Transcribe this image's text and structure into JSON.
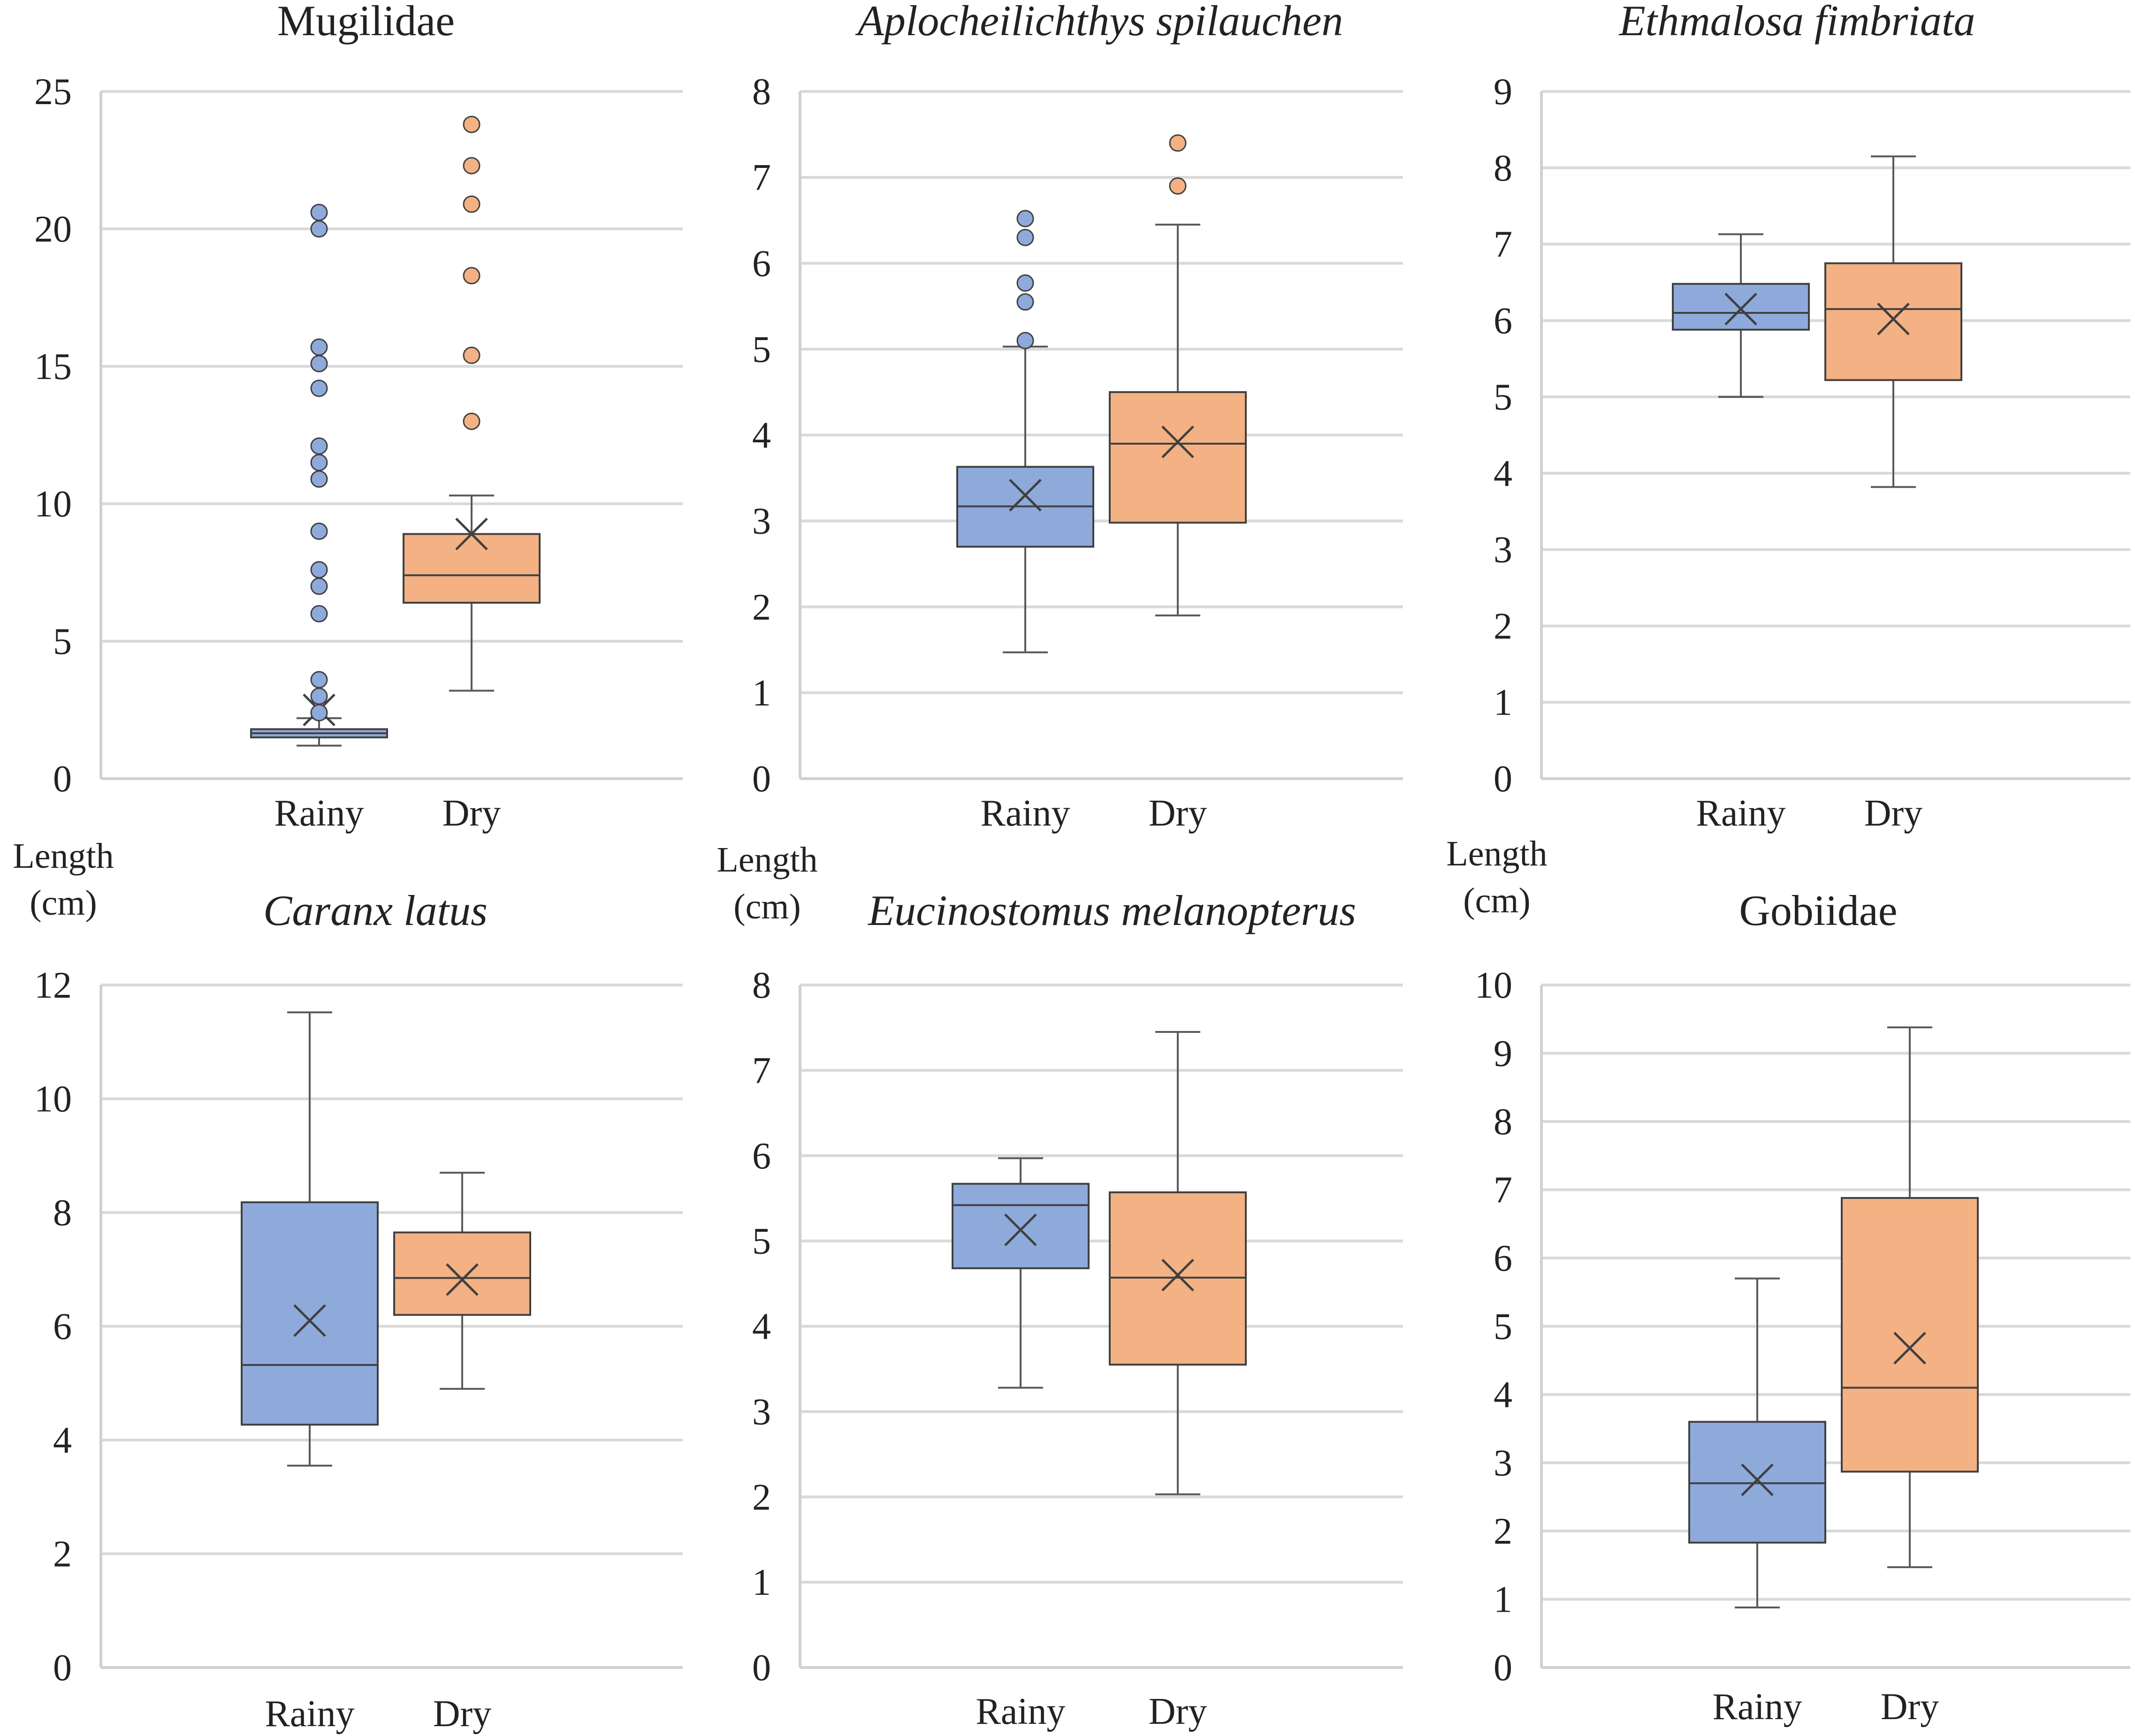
{
  "colors": {
    "rainy": "#8eaadb",
    "dry": "#f4b183",
    "grid": "#d9d9d9"
  },
  "y_axis_label_line1": "Length",
  "y_axis_label_line2": "(cm)",
  "chart_data": [
    {
      "type": "boxplot",
      "title": "Mugilidae",
      "italic": false,
      "ylim": [
        0,
        25
      ],
      "ticks": [
        0,
        5,
        10,
        15,
        20,
        25
      ],
      "categories": [
        "Rainy",
        "Dry"
      ],
      "series": [
        {
          "name": "Rainy",
          "min": 1.2,
          "q1": 1.5,
          "median": 1.65,
          "q3": 1.8,
          "max": 2.2,
          "mean": 2.5,
          "outliers": [
            2.4,
            3.0,
            3.6,
            6.0,
            7.0,
            7.6,
            9.0,
            10.9,
            11.5,
            12.1,
            14.2,
            15.1,
            15.7,
            20.0,
            20.6
          ]
        },
        {
          "name": "Dry",
          "min": 3.2,
          "q1": 6.4,
          "median": 7.4,
          "q3": 8.9,
          "max": 10.3,
          "mean": 8.9,
          "outliers": [
            13.0,
            15.4,
            18.3,
            20.9,
            22.3,
            23.8
          ]
        }
      ]
    },
    {
      "type": "boxplot",
      "title": "Aplocheilichthys spilauchen",
      "italic": true,
      "ylim": [
        0,
        8
      ],
      "ticks": [
        0,
        1,
        2,
        3,
        4,
        5,
        6,
        7,
        8
      ],
      "categories": [
        "Rainy",
        "Dry"
      ],
      "series": [
        {
          "name": "Rainy",
          "min": 1.47,
          "q1": 2.7,
          "median": 3.17,
          "q3": 3.63,
          "max": 5.03,
          "mean": 3.3,
          "outliers": [
            5.1,
            5.55,
            5.77,
            6.3,
            6.52
          ]
        },
        {
          "name": "Dry",
          "min": 1.9,
          "q1": 2.98,
          "median": 3.9,
          "q3": 4.5,
          "max": 6.45,
          "mean": 3.92,
          "outliers": [
            6.9,
            7.4
          ]
        }
      ]
    },
    {
      "type": "boxplot",
      "title": "Ethmalosa fimbriata",
      "italic": true,
      "ylim": [
        0,
        9
      ],
      "ticks": [
        0,
        1,
        2,
        3,
        4,
        5,
        6,
        7,
        8,
        9
      ],
      "categories": [
        "Rainy",
        "Dry"
      ],
      "series": [
        {
          "name": "Rainy",
          "min": 5.0,
          "q1": 5.88,
          "median": 6.1,
          "q3": 6.48,
          "max": 7.13,
          "mean": 6.15,
          "outliers": []
        },
        {
          "name": "Dry",
          "min": 3.82,
          "q1": 5.22,
          "median": 6.15,
          "q3": 6.75,
          "max": 8.15,
          "mean": 6.02,
          "outliers": []
        }
      ]
    },
    {
      "type": "boxplot",
      "title": "Caranx latus",
      "italic": true,
      "ylim": [
        0,
        12
      ],
      "ticks": [
        0,
        2,
        4,
        6,
        8,
        10,
        12
      ],
      "categories": [
        "Rainy",
        "Dry"
      ],
      "series": [
        {
          "name": "Rainy",
          "min": 3.55,
          "q1": 4.27,
          "median": 5.32,
          "q3": 8.18,
          "max": 11.52,
          "mean": 6.1,
          "outliers": []
        },
        {
          "name": "Dry",
          "min": 4.9,
          "q1": 6.2,
          "median": 6.85,
          "q3": 7.65,
          "max": 8.7,
          "mean": 6.82,
          "outliers": []
        }
      ]
    },
    {
      "type": "boxplot",
      "title": "Eucinostomus melanopterus",
      "italic": true,
      "ylim": [
        0,
        8
      ],
      "ticks": [
        0,
        1,
        2,
        3,
        4,
        5,
        6,
        7,
        8
      ],
      "categories": [
        "Rainy",
        "Dry"
      ],
      "series": [
        {
          "name": "Rainy",
          "min": 3.28,
          "q1": 4.68,
          "median": 5.42,
          "q3": 5.67,
          "max": 5.97,
          "mean": 5.13,
          "outliers": []
        },
        {
          "name": "Dry",
          "min": 2.03,
          "q1": 3.55,
          "median": 4.57,
          "q3": 5.57,
          "max": 7.45,
          "mean": 4.6,
          "outliers": []
        }
      ]
    },
    {
      "type": "boxplot",
      "title": "Gobiidae",
      "italic": false,
      "ylim": [
        0,
        10
      ],
      "ticks": [
        0,
        1,
        2,
        3,
        4,
        5,
        6,
        7,
        8,
        9,
        10
      ],
      "categories": [
        "Rainy",
        "Dry"
      ],
      "series": [
        {
          "name": "Rainy",
          "min": 0.88,
          "q1": 1.83,
          "median": 2.7,
          "q3": 3.6,
          "max": 5.7,
          "mean": 2.75,
          "outliers": []
        },
        {
          "name": "Dry",
          "min": 1.47,
          "q1": 2.87,
          "median": 4.1,
          "q3": 6.88,
          "max": 9.38,
          "mean": 4.68,
          "outliers": []
        }
      ]
    }
  ]
}
